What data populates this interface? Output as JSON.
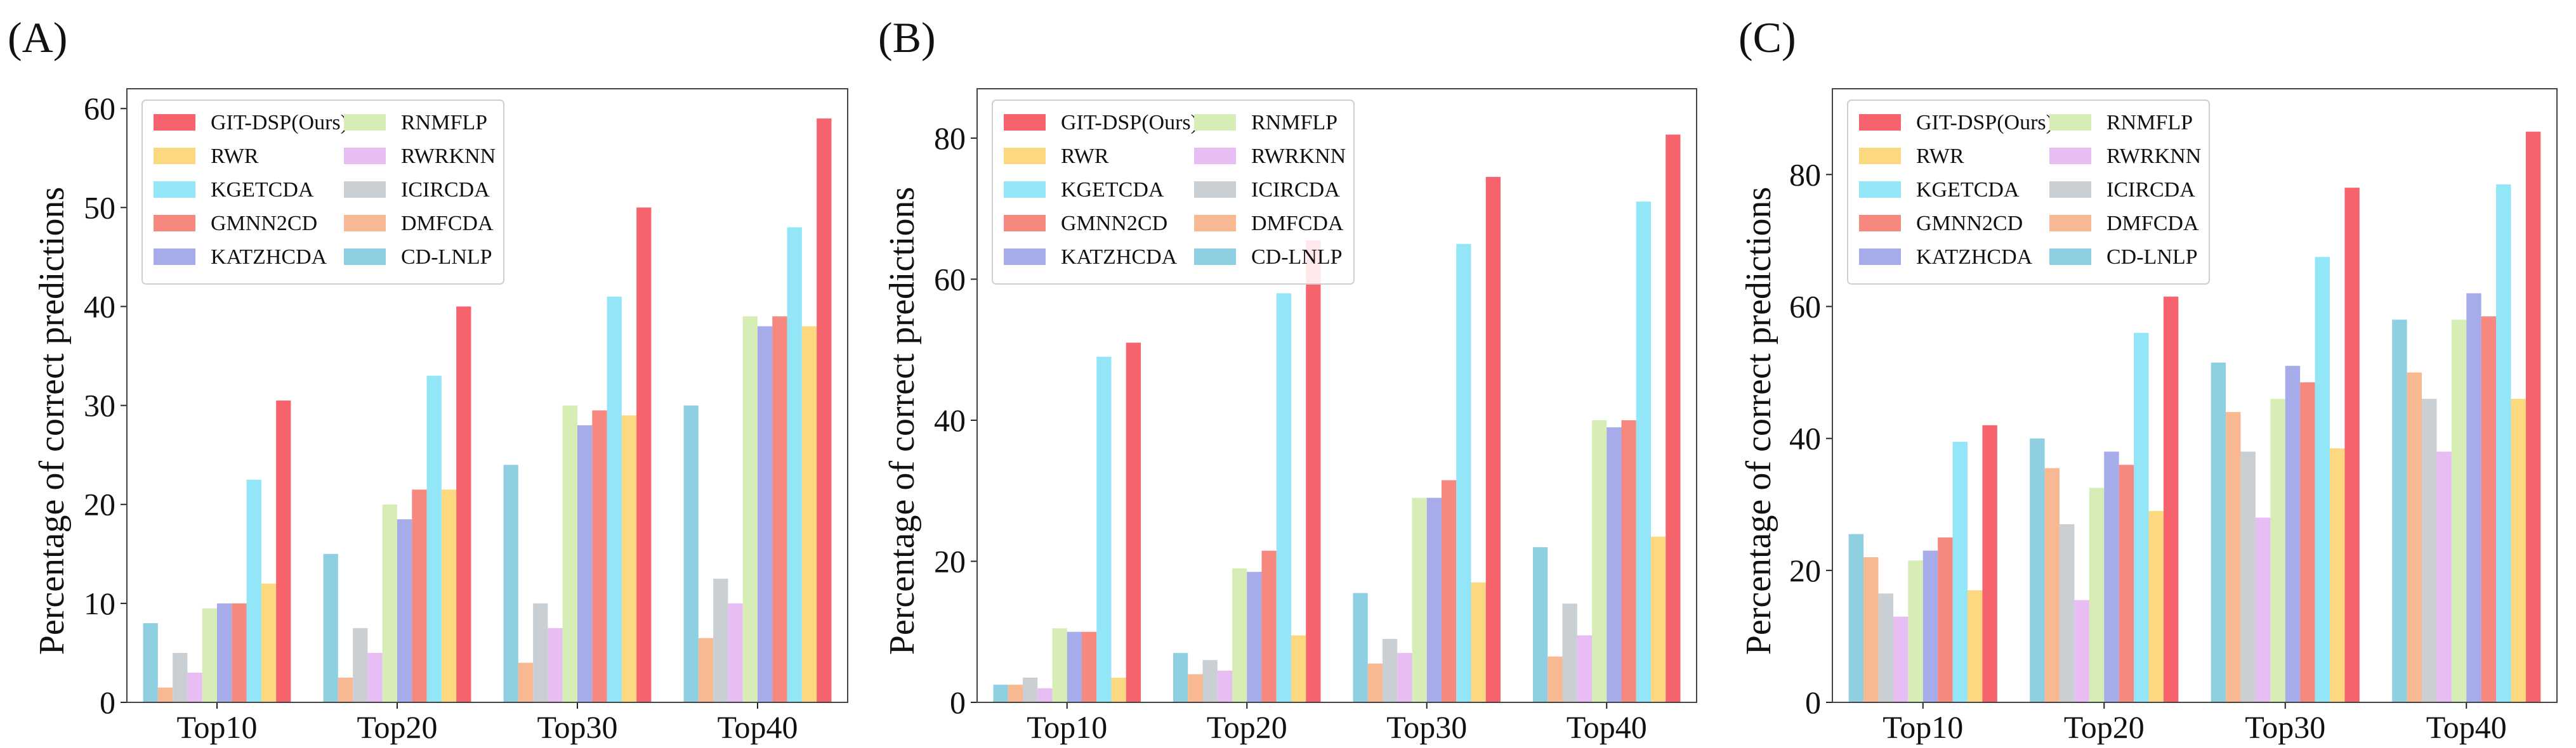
{
  "chart_data": [
    {
      "type": "bar",
      "panel_label": "(A)",
      "ylabel": "Percentage of correct predictions",
      "xlabel": "",
      "categories": [
        "Top10",
        "Top20",
        "Top30",
        "Top40"
      ],
      "ylim": [
        0,
        62
      ],
      "yticks": [
        "0",
        "10",
        "20",
        "30",
        "40",
        "50",
        "60"
      ],
      "ytick_values": [
        0,
        10,
        20,
        30,
        40,
        50,
        60
      ],
      "legend_position": "top-left",
      "series": [
        {
          "name": "CD-LNLP",
          "color": "#8fcfe2",
          "values": [
            8,
            15,
            24,
            30
          ]
        },
        {
          "name": "DMFCDA",
          "color": "#f8b891",
          "values": [
            1.5,
            2.5,
            4,
            6.5
          ]
        },
        {
          "name": "ICIRCDA",
          "color": "#c9cfd2",
          "values": [
            5,
            7.5,
            10,
            12.5
          ]
        },
        {
          "name": "RWRKNN",
          "color": "#e7bdf3",
          "values": [
            3,
            5,
            7.5,
            10
          ]
        },
        {
          "name": "RNMFLP",
          "color": "#d6edb6",
          "values": [
            9.5,
            20,
            30,
            39
          ]
        },
        {
          "name": "KATZHCDA",
          "color": "#a6acea",
          "values": [
            10,
            18.5,
            28,
            38
          ]
        },
        {
          "name": "GMNN2CD",
          "color": "#f6887f",
          "values": [
            10,
            21.5,
            29.5,
            39
          ]
        },
        {
          "name": "KGETCDA",
          "color": "#93e5f8",
          "values": [
            22.5,
            33,
            41,
            48
          ]
        },
        {
          "name": "RWR",
          "color": "#fcd980",
          "values": [
            12,
            21.5,
            29,
            38
          ]
        },
        {
          "name": "GIT-DSP(Ours)",
          "color": "#f6636c",
          "values": [
            30.5,
            40,
            50,
            59
          ]
        }
      ]
    },
    {
      "type": "bar",
      "panel_label": "(B)",
      "ylabel": "Percentage of correct predictions",
      "xlabel": "",
      "categories": [
        "Top10",
        "Top20",
        "Top30",
        "Top40"
      ],
      "ylim": [
        0,
        87
      ],
      "yticks": [
        "0",
        "20",
        "40",
        "60",
        "80"
      ],
      "ytick_values": [
        0,
        20,
        40,
        60,
        80
      ],
      "legend_position": "top-left",
      "series": [
        {
          "name": "CD-LNLP",
          "color": "#8fcfe2",
          "values": [
            2.5,
            7,
            15.5,
            22
          ]
        },
        {
          "name": "DMFCDA",
          "color": "#f8b891",
          "values": [
            2.5,
            4,
            5.5,
            6.5
          ]
        },
        {
          "name": "ICIRCDA",
          "color": "#c9cfd2",
          "values": [
            3.5,
            6,
            9,
            14
          ]
        },
        {
          "name": "RWRKNN",
          "color": "#e7bdf3",
          "values": [
            2,
            4.5,
            7,
            9.5
          ]
        },
        {
          "name": "RNMFLP",
          "color": "#d6edb6",
          "values": [
            10.5,
            19,
            29,
            40
          ]
        },
        {
          "name": "KATZHCDA",
          "color": "#a6acea",
          "values": [
            10,
            18.5,
            29,
            39
          ]
        },
        {
          "name": "GMNN2CD",
          "color": "#f6887f",
          "values": [
            10,
            21.5,
            31.5,
            40
          ]
        },
        {
          "name": "KGETCDA",
          "color": "#93e5f8",
          "values": [
            49,
            58,
            65,
            71
          ]
        },
        {
          "name": "RWR",
          "color": "#fcd980",
          "values": [
            3.5,
            9.5,
            17,
            23.5
          ]
        },
        {
          "name": "GIT-DSP(Ours)",
          "color": "#f6636c",
          "values": [
            51,
            65.5,
            74.5,
            80.5
          ]
        }
      ]
    },
    {
      "type": "bar",
      "panel_label": "(C)",
      "ylabel": "Percentage of correct predictions",
      "xlabel": "",
      "categories": [
        "Top10",
        "Top20",
        "Top30",
        "Top40"
      ],
      "ylim": [
        0,
        93
      ],
      "yticks": [
        "0",
        "20",
        "40",
        "60",
        "80"
      ],
      "ytick_values": [
        0,
        20,
        40,
        60,
        80
      ],
      "legend_position": "top-left",
      "series": [
        {
          "name": "CD-LNLP",
          "color": "#8fcfe2",
          "values": [
            25.5,
            40,
            51.5,
            58
          ]
        },
        {
          "name": "DMFCDA",
          "color": "#f8b891",
          "values": [
            22,
            35.5,
            44,
            50
          ]
        },
        {
          "name": "ICIRCDA",
          "color": "#c9cfd2",
          "values": [
            16.5,
            27,
            38,
            46
          ]
        },
        {
          "name": "RWRKNN",
          "color": "#e7bdf3",
          "values": [
            13,
            15.5,
            28,
            38
          ]
        },
        {
          "name": "RNMFLP",
          "color": "#d6edb6",
          "values": [
            21.5,
            32.5,
            46,
            58
          ]
        },
        {
          "name": "KATZHCDA",
          "color": "#a6acea",
          "values": [
            23,
            38,
            51,
            62
          ]
        },
        {
          "name": "GMNN2CD",
          "color": "#f6887f",
          "values": [
            25,
            36,
            48.5,
            58.5
          ]
        },
        {
          "name": "KGETCDA",
          "color": "#93e5f8",
          "values": [
            39.5,
            56,
            67.5,
            78.5
          ]
        },
        {
          "name": "RWR",
          "color": "#fcd980",
          "values": [
            17,
            29,
            38.5,
            46
          ]
        },
        {
          "name": "GIT-DSP(Ours)",
          "color": "#f6636c",
          "values": [
            42,
            61.5,
            78,
            86.5
          ]
        }
      ]
    }
  ],
  "legend": {
    "order_left": [
      "GIT-DSP(Ours)",
      "RWR",
      "KGETCDA",
      "GMNN2CD",
      "KATZHCDA"
    ],
    "order_right": [
      "RNMFLP",
      "RWRKNN",
      "ICIRCDA",
      "DMFCDA",
      "CD-LNLP"
    ]
  }
}
